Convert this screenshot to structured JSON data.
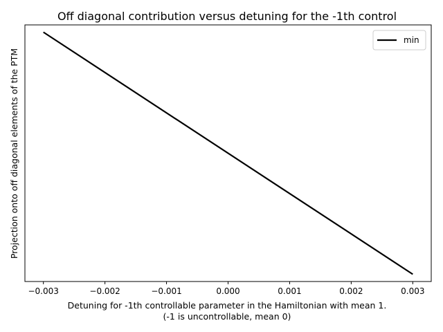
{
  "chart_data": {
    "type": "line",
    "title": "Off diagonal contribution versus detuning for the -1th control",
    "xlabel_line1": "Detuning for -1th controllable parameter in the Hamiltonian with mean 1.",
    "xlabel_line2": "(-1 is uncontrollable, mean 0)",
    "ylabel": "Projection onto off diagonal elements of the PTM",
    "xlim": [
      -0.0033,
      0.0033
    ],
    "ylim": [
      -0.03,
      1.03
    ],
    "x_ticks": [
      -0.003,
      -0.002,
      -0.001,
      0.0,
      0.001,
      0.002,
      0.003
    ],
    "x_tick_labels": [
      "−0.003",
      "−0.002",
      "−0.001",
      "0.000",
      "0.001",
      "0.002",
      "0.003"
    ],
    "y_ticks_visible": false,
    "grid": false,
    "legend_position": "upper-right",
    "series": [
      {
        "name": "min",
        "color": "#000000",
        "x": [
          -0.003,
          0.003
        ],
        "y": [
          1.0,
          0.0
        ]
      }
    ]
  }
}
